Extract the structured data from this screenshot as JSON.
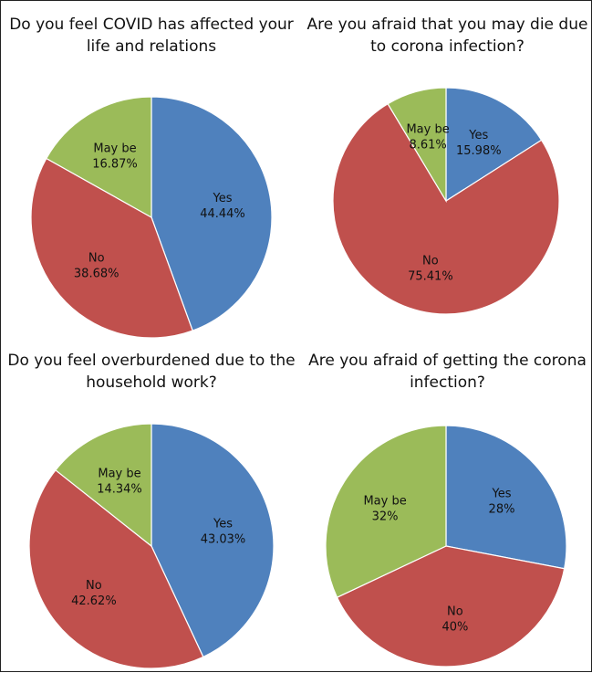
{
  "chart_data": [
    {
      "type": "pie",
      "title": "Do you feel COVID has affected your\nlife and relations",
      "slices": [
        {
          "label": "Yes",
          "value": 44.44,
          "display": "44.44%",
          "color": "#4f81bd"
        },
        {
          "label": "No",
          "value": 38.68,
          "display": "38.68%",
          "color": "#c0504d"
        },
        {
          "label": "May be",
          "value": 16.87,
          "display": "16.87%",
          "color": "#9bbb59"
        }
      ]
    },
    {
      "type": "pie",
      "title": "Are you afraid that you may die due\nto corona infection?",
      "slices": [
        {
          "label": "Yes",
          "value": 15.98,
          "display": "15.98%",
          "color": "#4f81bd"
        },
        {
          "label": "No",
          "value": 75.41,
          "display": "75.41%",
          "color": "#c0504d"
        },
        {
          "label": "May be",
          "value": 8.61,
          "display": "8.61%",
          "color": "#9bbb59"
        }
      ]
    },
    {
      "type": "pie",
      "title": "Do you feel overburdened due to the\nhousehold work?",
      "slices": [
        {
          "label": "Yes",
          "value": 43.03,
          "display": "43.03%",
          "color": "#4f81bd"
        },
        {
          "label": "No",
          "value": 42.62,
          "display": "42.62%",
          "color": "#c0504d"
        },
        {
          "label": "May be",
          "value": 14.34,
          "display": "14.34%",
          "color": "#9bbb59"
        }
      ]
    },
    {
      "type": "pie",
      "title": "Are you afraid of getting the corona\ninfection?",
      "slices": [
        {
          "label": "Yes",
          "value": 28,
          "display": "28%",
          "color": "#4f81bd"
        },
        {
          "label": "No",
          "value": 40,
          "display": "40%",
          "color": "#c0504d"
        },
        {
          "label": "May be",
          "value": 32,
          "display": "32%",
          "color": "#9bbb59"
        }
      ]
    }
  ]
}
